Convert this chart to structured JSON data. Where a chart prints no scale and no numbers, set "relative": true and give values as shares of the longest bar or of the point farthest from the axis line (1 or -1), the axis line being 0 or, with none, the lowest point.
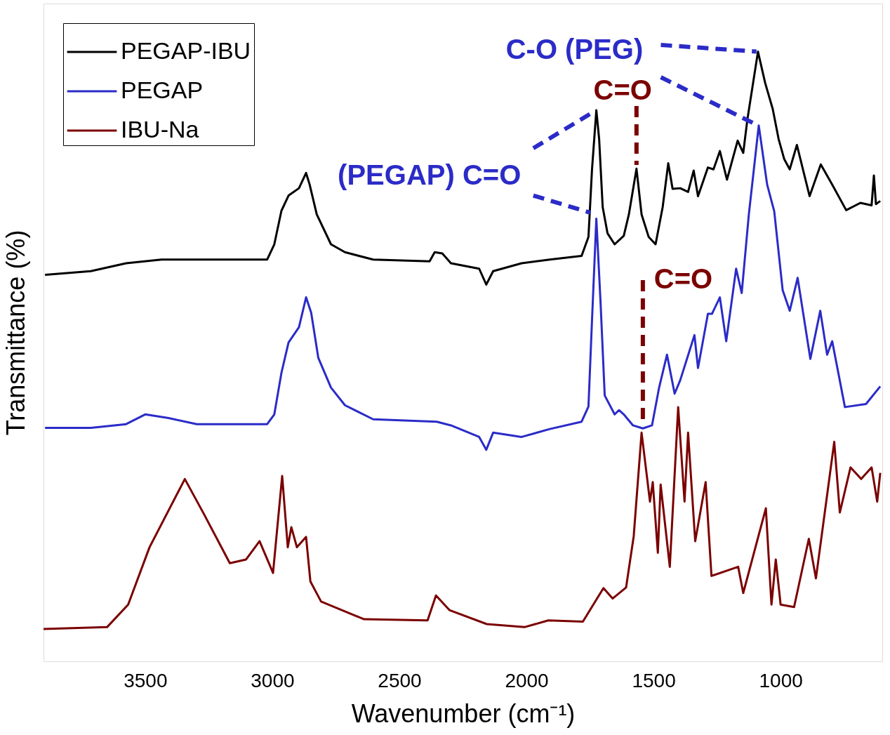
{
  "chart_data": {
    "type": "line",
    "xlabel": "Wavenumber (cm⁻¹)",
    "ylabel": "Transmittance (%)",
    "xlim": [
      3900,
      600
    ],
    "xticks": [
      3500,
      3000,
      2500,
      2000,
      1500,
      1000
    ],
    "relative": true,
    "legend": "top left",
    "annotations": [
      "C-O (PEG)",
      {
        "text": "C=O",
        "x": 1567,
        "y": 0.808
      },
      "(PEGAP) C=O",
      {
        "text": "C=O",
        "x": 1542,
        "y": 0.382
      }
    ],
    "series": [
      {
        "name": "PEGAP-IBU",
        "color": "#000000",
        "x": [
          3894,
          3714,
          3575,
          3436,
          3158,
          3020,
          2992,
          2964,
          2936,
          2895,
          2867,
          2853,
          2825,
          2769,
          2714,
          2603,
          2381,
          2361,
          2331,
          2297,
          2186,
          2158,
          2131,
          2019,
          1908,
          1783,
          1756,
          1742,
          1725,
          1714,
          1700,
          1681,
          1653,
          1617,
          1597,
          1567,
          1547,
          1519,
          1492,
          1464,
          1442,
          1425,
          1395,
          1364,
          1342,
          1325,
          1286,
          1264,
          1239,
          1211,
          1169,
          1147,
          1131,
          1089,
          1061,
          1031,
          1008,
          986,
          964,
          936,
          886,
          842,
          797,
          742,
          686,
          642,
          633,
          625,
          608
        ],
        "values": [
          0.634,
          0.64,
          0.653,
          0.659,
          0.659,
          0.659,
          0.684,
          0.739,
          0.764,
          0.776,
          0.801,
          0.782,
          0.733,
          0.684,
          0.671,
          0.659,
          0.656,
          0.671,
          0.669,
          0.653,
          0.644,
          0.618,
          0.64,
          0.653,
          0.659,
          0.665,
          0.696,
          0.807,
          0.904,
          0.857,
          0.745,
          0.702,
          0.684,
          0.698,
          0.733,
          0.808,
          0.733,
          0.696,
          0.684,
          0.745,
          0.817,
          0.775,
          0.776,
          0.77,
          0.805,
          0.763,
          0.81,
          0.807,
          0.837,
          0.79,
          0.854,
          0.834,
          0.888,
          1.0,
          0.949,
          0.906,
          0.857,
          0.824,
          0.807,
          0.847,
          0.763,
          0.815,
          0.782,
          0.74,
          0.752,
          0.748,
          0.797,
          0.75,
          0.755
        ]
      },
      {
        "name": "PEGAP",
        "color": "#2b2bc8",
        "x": [
          3894,
          3714,
          3575,
          3500,
          3408,
          3297,
          3020,
          2992,
          2964,
          2936,
          2895,
          2867,
          2847,
          2819,
          2769,
          2714,
          2603,
          2353,
          2297,
          2186,
          2158,
          2131,
          2019,
          1908,
          1783,
          1756,
          1742,
          1725,
          1708,
          1692,
          1653,
          1636,
          1617,
          1581,
          1542,
          1506,
          1478,
          1447,
          1417,
          1395,
          1339,
          1325,
          1286,
          1270,
          1239,
          1214,
          1175,
          1153,
          1125,
          1086,
          1053,
          1025,
          992,
          964,
          933,
          883,
          844,
          817,
          797,
          747,
          664,
          608
        ],
        "values": [
          0.383,
          0.383,
          0.389,
          0.405,
          0.399,
          0.389,
          0.389,
          0.405,
          0.473,
          0.523,
          0.548,
          0.597,
          0.572,
          0.498,
          0.449,
          0.42,
          0.397,
          0.393,
          0.387,
          0.368,
          0.347,
          0.375,
          0.368,
          0.381,
          0.393,
          0.418,
          0.56,
          0.726,
          0.585,
          0.436,
          0.405,
          0.412,
          0.405,
          0.387,
          0.382,
          0.387,
          0.449,
          0.503,
          0.439,
          0.461,
          0.535,
          0.481,
          0.57,
          0.57,
          0.597,
          0.525,
          0.644,
          0.604,
          0.733,
          0.879,
          0.782,
          0.738,
          0.609,
          0.575,
          0.629,
          0.496,
          0.575,
          0.503,
          0.525,
          0.417,
          0.422,
          0.451
        ]
      },
      {
        "name": "IBU-Na",
        "color": "#7b0000",
        "x": [
          3900,
          3650,
          3567,
          3483,
          3344,
          3272,
          3167,
          3103,
          3050,
          2997,
          2961,
          2939,
          2925,
          2903,
          2867,
          2850,
          2808,
          2639,
          2389,
          2356,
          2303,
          2156,
          2008,
          1914,
          1778,
          1697,
          1661,
          1608,
          1578,
          1547,
          1514,
          1503,
          1483,
          1472,
          1436,
          1403,
          1378,
          1364,
          1336,
          1295,
          1272,
          1167,
          1147,
          1058,
          1036,
          1019,
          1000,
          947,
          889,
          861,
          789,
          767,
          725,
          683,
          642,
          620,
          608
        ],
        "values": [
          0.053,
          0.056,
          0.093,
          0.187,
          0.299,
          0.244,
          0.161,
          0.167,
          0.197,
          0.145,
          0.304,
          0.187,
          0.22,
          0.187,
          0.204,
          0.131,
          0.098,
          0.069,
          0.067,
          0.108,
          0.084,
          0.061,
          0.056,
          0.067,
          0.065,
          0.12,
          0.103,
          0.121,
          0.205,
          0.375,
          0.262,
          0.294,
          0.178,
          0.29,
          0.155,
          0.417,
          0.262,
          0.375,
          0.197,
          0.294,
          0.14,
          0.155,
          0.112,
          0.251,
          0.093,
          0.167,
          0.093,
          0.089,
          0.201,
          0.136,
          0.36,
          0.244,
          0.318,
          0.299,
          0.318,
          0.262,
          0.309
        ]
      }
    ]
  }
}
